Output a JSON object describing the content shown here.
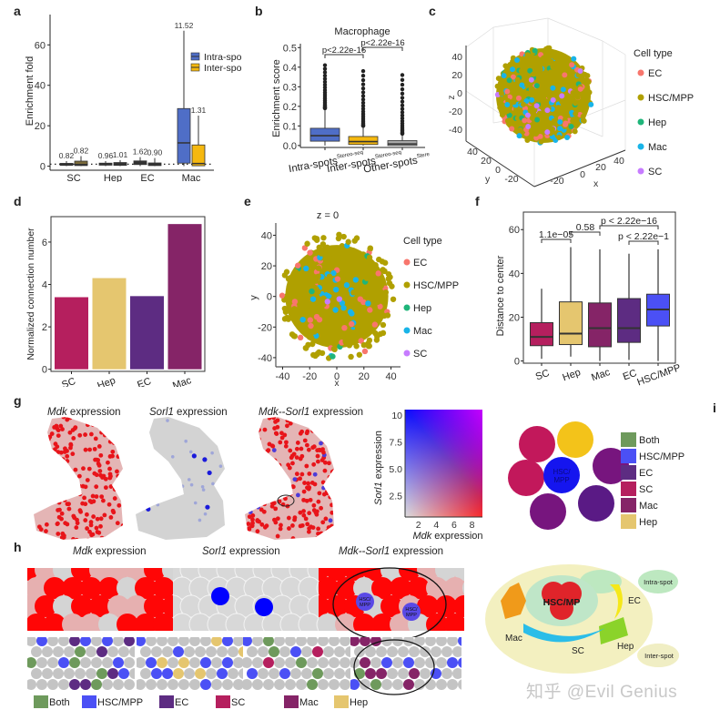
{
  "panel_labels": [
    "a",
    "b",
    "c",
    "d",
    "e",
    "f",
    "g",
    "h",
    "i"
  ],
  "colors": {
    "intra": "#4f6ec7",
    "inter": "#f5b80f",
    "other": "#a9a9a9",
    "EC_scatter": "#f8766d",
    "HSC_scatter": "#b0a000",
    "Hep_scatter": "#1fb57a",
    "Mac_scatter": "#19b4e8",
    "SC_scatter": "#c77cff",
    "SC": "#b51f5e",
    "Hep": "#e5c66f",
    "EC": "#5d2c82",
    "Mac": "#852467",
    "HSC_MPP": "#4b50f5",
    "Both": "#6e9a5c",
    "grey_spot": "#c4c4c4"
  },
  "chart_data": [
    {
      "id": "a",
      "type": "box",
      "title": "",
      "xlabel": "",
      "ylabel": "Enrichment fold",
      "ylim": [
        -2,
        75
      ],
      "yticks": [
        0,
        20,
        40,
        60
      ],
      "categories": [
        "SC",
        "Hep",
        "EC",
        "Mac"
      ],
      "legend": [
        "Intra-spot",
        "Inter-spot"
      ],
      "legend_position": "top-right",
      "reference_line": 1,
      "series": [
        {
          "name": "Intra-spot",
          "labels": [
            "0.82",
            "0.96",
            "1.62",
            "11.52"
          ],
          "boxes": [
            {
              "min": 0,
              "q1": 0.4,
              "median": 0.82,
              "q3": 1.4,
              "max": 2.5
            },
            {
              "min": 0,
              "q1": 0.5,
              "median": 0.96,
              "q3": 1.5,
              "max": 2.5
            },
            {
              "min": 0,
              "q1": 0.8,
              "median": 1.62,
              "q3": 2.6,
              "max": 4.5
            },
            {
              "min": 0,
              "q1": 1.5,
              "median": 11.52,
              "q3": 28.5,
              "max": 67
            }
          ]
        },
        {
          "name": "Inter-spot",
          "labels": [
            "0.82",
            "1.01",
            "0.90",
            "1.31"
          ],
          "boxes": [
            {
              "min": 0,
              "q1": 0.3,
              "median": 0.82,
              "q3": 2.5,
              "max": 5
            },
            {
              "min": 0,
              "q1": 0.4,
              "median": 1.01,
              "q3": 1.8,
              "max": 3
            },
            {
              "min": 0,
              "q1": 0.3,
              "median": 0.9,
              "q3": 1.6,
              "max": 4
            },
            {
              "min": 0,
              "q1": 0.2,
              "median": 1.31,
              "q3": 10.5,
              "max": 25
            }
          ]
        }
      ]
    },
    {
      "id": "b",
      "type": "box",
      "title": "Macrophage",
      "ylabel": "Enrichment score",
      "ylim": [
        -0.01,
        0.52
      ],
      "yticks": [
        "0.0",
        "0.1",
        "0.2",
        "0.3",
        "0.4",
        "0.5"
      ],
      "categories": [
        "Intra-spots",
        "Inter-spots",
        "Other-spots"
      ],
      "category_superscript": "Stereo-seq",
      "boxes": [
        {
          "min": 0.0,
          "q1": 0.022,
          "median": 0.05,
          "q3": 0.088,
          "max": 0.19,
          "outliers_to": 0.41
        },
        {
          "min": 0.0,
          "q1": 0.005,
          "median": 0.02,
          "q3": 0.046,
          "max": 0.1,
          "outliers_to": 0.38
        },
        {
          "min": 0.0,
          "q1": 0.0,
          "median": 0.008,
          "q3": 0.025,
          "max": 0.06,
          "outliers_to": 0.36
        }
      ],
      "comparisons": [
        {
          "from": 0,
          "to": 1,
          "label": "p<2.22e-16"
        },
        {
          "from": 1,
          "to": 2,
          "label": "p<2.22e-16"
        }
      ]
    },
    {
      "id": "c",
      "type": "scatter",
      "subtype": "3d",
      "xlabel": "x",
      "ylabel": "y",
      "zlabel": "z",
      "zticks": [
        "40",
        "20",
        "0",
        "-20",
        "-40"
      ],
      "yticks": [
        "40",
        "20",
        "0",
        "-20"
      ],
      "xticks": [
        "-20",
        "0",
        "20",
        "40"
      ],
      "legend_title": "Cell type",
      "legend": [
        "EC",
        "HSC/MPP",
        "Hep",
        "Mac",
        "SC"
      ],
      "legend_position": "right"
    },
    {
      "id": "d",
      "type": "bar",
      "ylabel": "Normalized connection number",
      "categories": [
        "SC",
        "Hep",
        "EC",
        "Mac"
      ],
      "values": [
        3.4,
        4.3,
        3.45,
        6.85
      ],
      "ylim": [
        -0.1,
        7.2
      ],
      "yticks": [
        0,
        2,
        4,
        6
      ]
    },
    {
      "id": "e",
      "type": "scatter",
      "title": "z = 0",
      "xlabel": "x",
      "ylabel": "y",
      "xlim": [
        -45,
        47
      ],
      "ylim": [
        -46,
        48
      ],
      "xticks": [
        -40,
        -20,
        0,
        20,
        40
      ],
      "yticks": [
        -40,
        -20,
        0,
        20,
        40
      ],
      "legend_title": "Cell type",
      "legend": [
        "EC",
        "HSC/MPP",
        "Hep",
        "Mac",
        "SC"
      ],
      "legend_position": "right"
    },
    {
      "id": "f",
      "type": "box",
      "ylabel": "Distance to center",
      "ylim": [
        -1,
        68
      ],
      "yticks": [
        0,
        20,
        40,
        60
      ],
      "categories": [
        "SC",
        "Hep",
        "Mac",
        "EC",
        "HSC/MPP"
      ],
      "boxes": [
        {
          "min": 1,
          "q1": 7,
          "median": 11,
          "q3": 17.5,
          "max": 33
        },
        {
          "min": 2,
          "q1": 7.5,
          "median": 12.5,
          "q3": 27,
          "max": 52
        },
        {
          "min": 0,
          "q1": 6.5,
          "median": 15,
          "q3": 26.5,
          "max": 51
        },
        {
          "min": 0.5,
          "q1": 8.5,
          "median": 15,
          "q3": 28.5,
          "max": 49
        },
        {
          "min": 0,
          "q1": 16,
          "median": 23.5,
          "q3": 30.5,
          "max": 51
        }
      ],
      "comparisons": [
        {
          "from": 0,
          "to": 1,
          "label": "1.1e−05",
          "level": 0
        },
        {
          "from": 1,
          "to": 2,
          "label": "0.58",
          "level": 1
        },
        {
          "from": 2,
          "to": 4,
          "label": "p < 2.22e−16",
          "level": 2
        },
        {
          "from": 3,
          "to": 4,
          "label": "p < 2.22e−1",
          "level": 0
        }
      ]
    },
    {
      "id": "g-legend",
      "type": "heatmap",
      "xlabel": "Mdk expression",
      "ylabel": "Sorl1 expression",
      "xticks": [
        "2",
        "4",
        "6",
        "8",
        "10"
      ],
      "yticks": [
        "2.5",
        "5.0",
        "7.5",
        "10"
      ]
    }
  ],
  "g": {
    "titles": [
      {
        "gene": "Mdk",
        "suffix": " expression"
      },
      {
        "gene": "Sorl1",
        "suffix": " expression"
      },
      {
        "gene": "Mdk--Sorl1",
        "suffix": " expression"
      }
    ]
  },
  "h": {
    "titles": [
      {
        "gene": "Mdk",
        "suffix": " expression"
      },
      {
        "gene": "Sorl1",
        "suffix": " expression"
      },
      {
        "gene": "Mdk--Sorl1",
        "suffix": " expression"
      }
    ],
    "spot_text": "HSC/ MPP",
    "legend": [
      "Both",
      "HSC/MPP",
      "EC",
      "SC",
      "Mac",
      "Hep"
    ]
  },
  "i": {
    "center_label": "HSC/ MPP",
    "legend": [
      "Both",
      "HSC/MPP",
      "EC",
      "SC",
      "Mac",
      "Hep"
    ]
  },
  "schematic": {
    "labels": {
      "hsc": "HSC/MP",
      "ec": "EC",
      "mac": "Mac",
      "sc": "SC",
      "hep": "Hep",
      "intra": "Intra-spot",
      "inter": "Inter-spot"
    }
  },
  "watermark": "知乎 @Evil Genius"
}
